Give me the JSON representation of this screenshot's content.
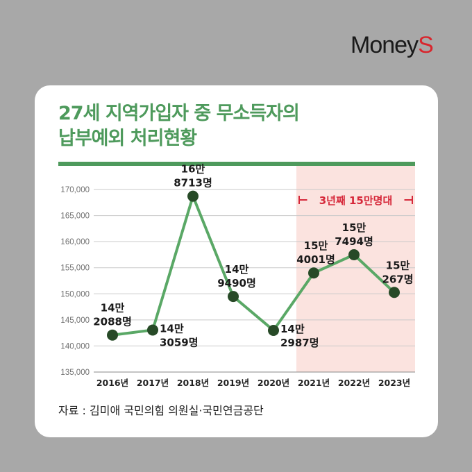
{
  "brand": {
    "text_main": "Money",
    "text_accent": "S",
    "accent_color": "#d8262d"
  },
  "title": {
    "line1": "27세 지역가입자 중 무소득자의",
    "line2": "납부예외 처리현황",
    "color": "#4e9a5c"
  },
  "source": "자료 : 김미애 국민의힘 의원실·국민연금공단",
  "chart_data": {
    "type": "line",
    "categories": [
      "2016년",
      "2017년",
      "2018년",
      "2019년",
      "2020년",
      "2021년",
      "2022년",
      "2023년"
    ],
    "series": [
      {
        "values": [
          142088,
          143059,
          168713,
          149490,
          142987,
          154001,
          157494,
          150267
        ],
        "color": "#5aa866",
        "marker_color": "#274a27"
      }
    ],
    "ylim": [
      135000,
      170000
    ],
    "yticks": [
      135000,
      140000,
      145000,
      150000,
      155000,
      160000,
      165000,
      170000
    ],
    "ytick_labels": [
      "135,000",
      "140,000",
      "145,000",
      "150,000",
      "155,000",
      "160,000",
      "165,000",
      "170,000"
    ],
    "data_labels": [
      [
        "14만",
        "2088명"
      ],
      [
        "14만",
        "3059명"
      ],
      [
        "16만",
        "8713명"
      ],
      [
        "14만",
        "9490명"
      ],
      [
        "14만",
        "2987명"
      ],
      [
        "15만",
        "4001명"
      ],
      [
        "15만",
        "7494명"
      ],
      [
        "15만",
        "267명"
      ]
    ],
    "grid": true,
    "highlight": {
      "from": "2021년",
      "to": "2023년",
      "label": "3년째 15만명대",
      "color": "#fbe3df",
      "label_color": "#d6283a"
    }
  }
}
